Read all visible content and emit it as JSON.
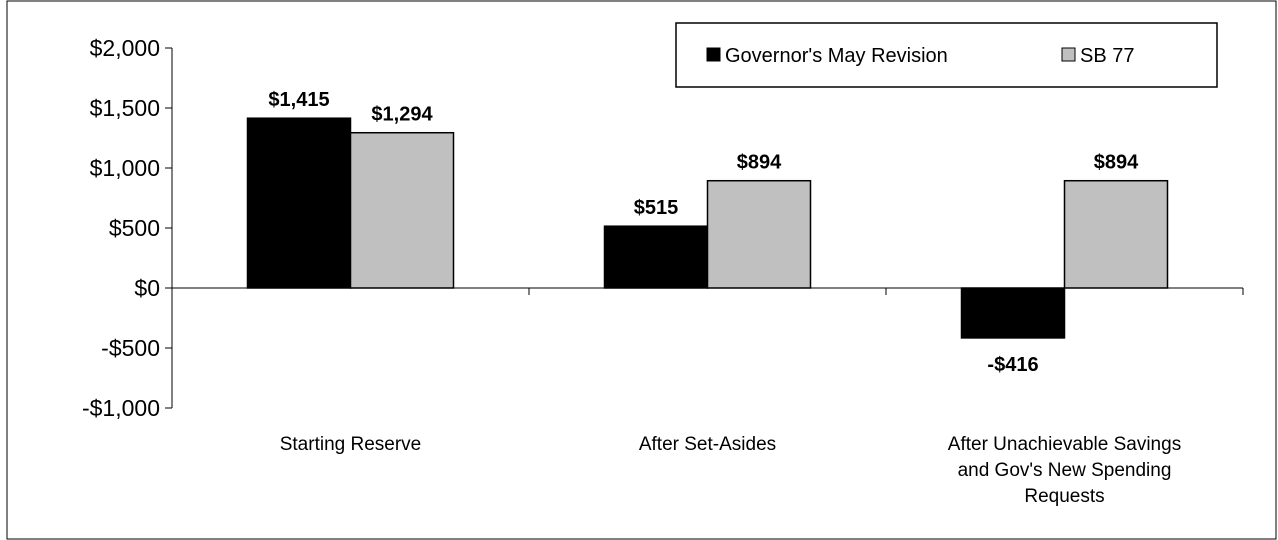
{
  "chart_data": {
    "type": "bar",
    "categories": [
      [
        "Starting Reserve"
      ],
      [
        "After Set-Asides"
      ],
      [
        "After Unachievable Savings",
        "and Gov's New Spending",
        "Requests"
      ]
    ],
    "series": [
      {
        "name": "Governor's May Revision",
        "values": [
          1415,
          515,
          -416
        ],
        "labels": [
          "$1,415",
          "$515",
          "-$416"
        ],
        "color": "#000000"
      },
      {
        "name": "SB 77",
        "values": [
          1294,
          894,
          894
        ],
        "labels": [
          "$1,294",
          "$894",
          "$894"
        ],
        "color": "#c0c0c0"
      }
    ],
    "yticks": [
      2000,
      1500,
      1000,
      500,
      0,
      -500,
      -1000
    ],
    "ytick_labels": [
      "$2,000",
      "$1,500",
      "$1,000",
      "$500",
      "$0",
      "-$500",
      "-$1,000"
    ],
    "ylim": [
      -1000,
      2000
    ],
    "legend_position": "top-right",
    "grid": false
  }
}
